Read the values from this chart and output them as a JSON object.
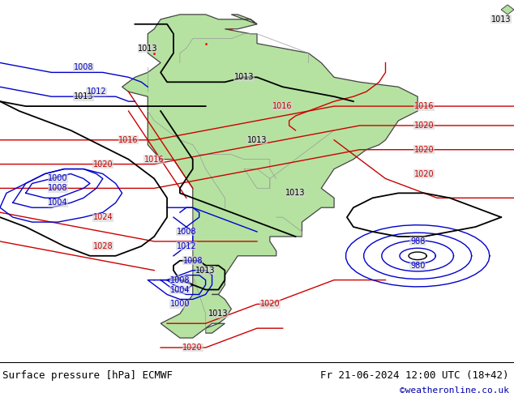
{
  "footer_left": "Surface pressure [hPa] ECMWF",
  "footer_right": "Fr 21-06-2024 12:00 UTC (18+42)",
  "footer_credit": "©weatheronline.co.uk",
  "figsize": [
    6.34,
    4.9
  ],
  "dpi": 100,
  "bg_color": "#d2d2d2",
  "land_color": "#b5e2a0",
  "sea_color": "#d2d2d2",
  "border_color": "#888888",
  "coast_color": "#333333",
  "black_line_color": "#000000",
  "blue_line_color": "#0000cc",
  "red_line_color": "#cc0000"
}
